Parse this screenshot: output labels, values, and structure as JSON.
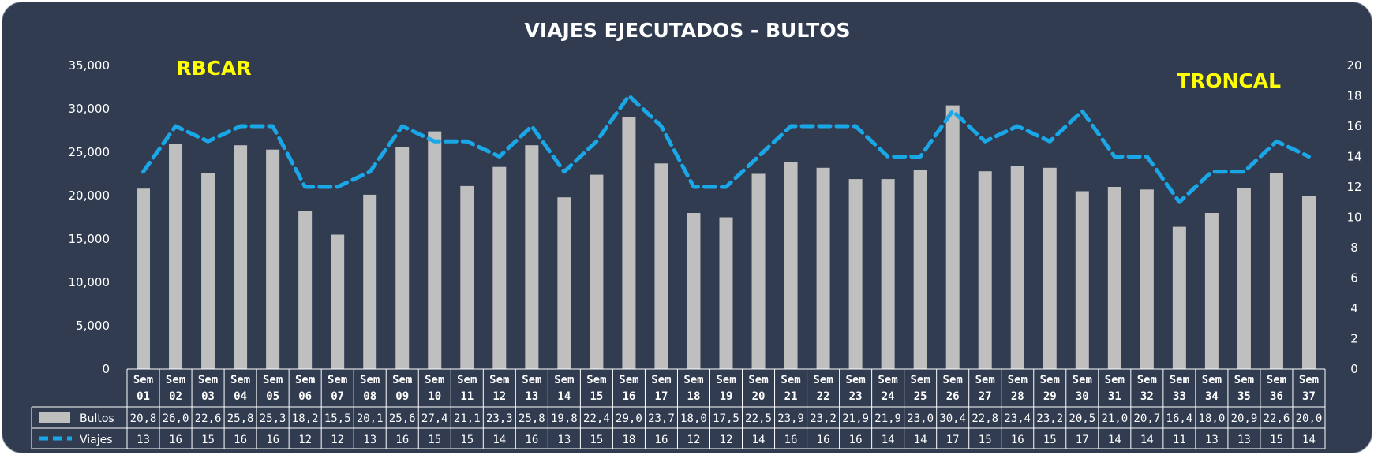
{
  "chart_data": {
    "type": "bar+line",
    "title": "VIAJES EJECUTADOS - BULTOS",
    "annotations": [
      "RBCAR",
      "TRONCAL"
    ],
    "categories": [
      [
        "Sem",
        "01"
      ],
      [
        "Sem",
        "02"
      ],
      [
        "Sem",
        "03"
      ],
      [
        "Sem",
        "04"
      ],
      [
        "Sem",
        "05"
      ],
      [
        "Sem",
        "06"
      ],
      [
        "Sem",
        "07"
      ],
      [
        "Sem",
        "08"
      ],
      [
        "Sem",
        "09"
      ],
      [
        "Sem",
        "10"
      ],
      [
        "Sem",
        "11"
      ],
      [
        "Sem",
        "12"
      ],
      [
        "Sem",
        "13"
      ],
      [
        "Sem",
        "14"
      ],
      [
        "Sem",
        "15"
      ],
      [
        "Sem",
        "16"
      ],
      [
        "Sem",
        "17"
      ],
      [
        "Sem",
        "18"
      ],
      [
        "Sem",
        "19"
      ],
      [
        "Sem",
        "20"
      ],
      [
        "Sem",
        "21"
      ],
      [
        "Sem",
        "22"
      ],
      [
        "Sem",
        "23"
      ],
      [
        "Sem",
        "24"
      ],
      [
        "Sem",
        "25"
      ],
      [
        "Sem",
        "26"
      ],
      [
        "Sem",
        "27"
      ],
      [
        "Sem",
        "28"
      ],
      [
        "Sem",
        "29"
      ],
      [
        "Sem",
        "30"
      ],
      [
        "Sem",
        "31"
      ],
      [
        "Sem",
        "32"
      ],
      [
        "Sem",
        "33"
      ],
      [
        "Sem",
        "34"
      ],
      [
        "Sem",
        "35"
      ],
      [
        "Sem",
        "36"
      ],
      [
        "Sem",
        "37"
      ]
    ],
    "y_left": {
      "ylim": [
        0,
        35000
      ],
      "ticks": [
        "0",
        "5,000",
        "10,000",
        "15,000",
        "20,000",
        "25,000",
        "30,000",
        "35,000"
      ]
    },
    "y_right": {
      "ylim": [
        0,
        20
      ],
      "ticks": [
        "0",
        "2",
        "4",
        "6",
        "8",
        "10",
        "12",
        "14",
        "16",
        "18",
        "20"
      ]
    },
    "grid": false,
    "series": [
      {
        "name": "Bultos",
        "type": "bar",
        "axis": "left",
        "color": "#bfbfbf",
        "values": [
          20800,
          26000,
          22600,
          25800,
          25300,
          18200,
          15500,
          20100,
          25600,
          27400,
          21100,
          23300,
          25800,
          19800,
          22400,
          29000,
          23700,
          18000,
          17500,
          22500,
          23900,
          23200,
          21900,
          21900,
          23000,
          30400,
          22800,
          23400,
          23200,
          20500,
          21000,
          20700,
          16400,
          18000,
          20900,
          22600,
          20000
        ],
        "labels": [
          "20,8",
          "26,0",
          "22,6",
          "25,8",
          "25,3",
          "18,2",
          "15,5",
          "20,1",
          "25,6",
          "27,4",
          "21,1",
          "23,3",
          "25,8",
          "19,8",
          "22,4",
          "29,0",
          "23,7",
          "18,0",
          "17,5",
          "22,5",
          "23,9",
          "23,2",
          "21,9",
          "21,9",
          "23,0",
          "30,4",
          "22,8",
          "23,4",
          "23,2",
          "20,5",
          "21,0",
          "20,7",
          "16,4",
          "18,0",
          "20,9",
          "22,6",
          "20,0"
        ]
      },
      {
        "name": "Viajes",
        "type": "line",
        "axis": "right",
        "color": "#1aa7e8",
        "dashed": true,
        "values": [
          13,
          16,
          15,
          16,
          16,
          12,
          12,
          13,
          16,
          15,
          15,
          14,
          16,
          13,
          15,
          18,
          16,
          12,
          12,
          14,
          16,
          16,
          16,
          14,
          14,
          17,
          15,
          16,
          15,
          17,
          14,
          14,
          11,
          13,
          13,
          15,
          14
        ],
        "labels": [
          "13",
          "16",
          "15",
          "16",
          "16",
          "12",
          "12",
          "13",
          "16",
          "15",
          "15",
          "14",
          "16",
          "13",
          "15",
          "18",
          "16",
          "12",
          "12",
          "14",
          "16",
          "16",
          "16",
          "14",
          "14",
          "17",
          "15",
          "16",
          "15",
          "17",
          "14",
          "14",
          "11",
          "13",
          "13",
          "15",
          "14"
        ]
      }
    ]
  }
}
